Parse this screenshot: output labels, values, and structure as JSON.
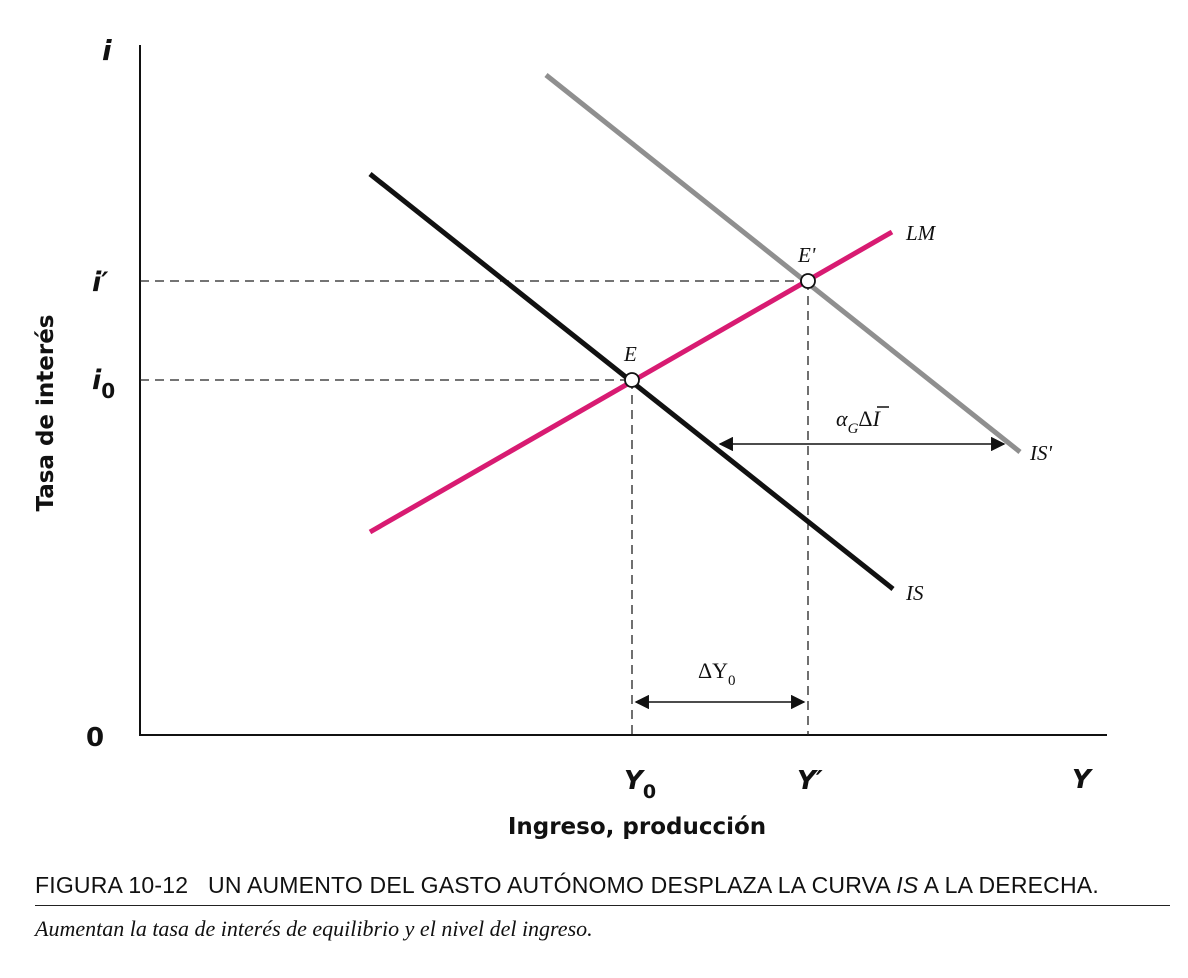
{
  "diagram": {
    "y_axis_symbol": "i",
    "x_axis_symbol": "Y",
    "origin_label": "0",
    "y_axis_title": "Tasa de interés",
    "x_axis_title": "Ingreso, producción",
    "i_prime_label": "i′",
    "i0_label": "i",
    "i0_sub": "0",
    "Y0_label": "Y",
    "Y0_sub": "0",
    "Y_prime_label": "Y′",
    "point_E": "E",
    "point_E_prime": "E'",
    "curve_LM": "LM",
    "curve_IS": "IS",
    "curve_IS_prime": "IS'",
    "shift_alpha": "α",
    "shift_alpha_sub": "G",
    "shift_delta": "Δ",
    "shift_I": "I",
    "deltaY_delta": "ΔY",
    "deltaY_sub": "0",
    "colors": {
      "LM": "#d81b72",
      "IS": "#111111",
      "IS_prime": "#8f8f8f"
    }
  },
  "caption": {
    "prefix": "FIGURA 10-12   UN AUMENTO DEL GASTO AUTÓNOMO DESPLAZA LA CURVA ",
    "italic_word": "IS",
    "suffix": " A LA DERECHA.",
    "subtitle": "Aumentan la tasa de interés de equilibrio y el nivel del ingreso."
  }
}
